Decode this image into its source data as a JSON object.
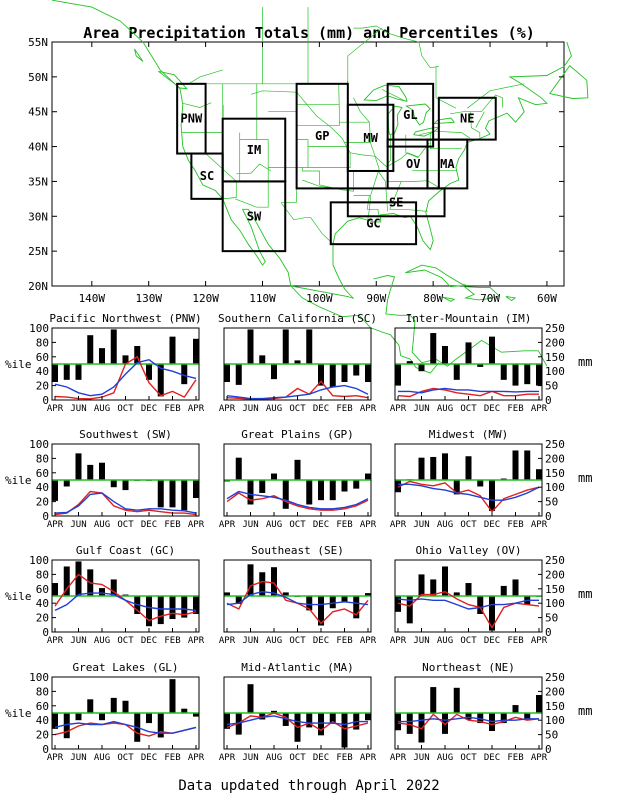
{
  "title": "Area Precipitation Totals (mm) and Percentiles (%)",
  "footer": "Data updated through April 2022",
  "map": {
    "lat_ticks": [
      "55N",
      "50N",
      "45N",
      "40N",
      "35N",
      "30N",
      "25N",
      "20N"
    ],
    "lon_ticks": [
      "140W",
      "130W",
      "120W",
      "110W",
      "100W",
      "90W",
      "80W",
      "70W",
      "60W"
    ],
    "land_color": "#22c222",
    "region_label_color": "#1f3fd6",
    "regions": [
      {
        "code": "PNW",
        "lon": [
          -125,
          -120
        ],
        "lat": [
          39,
          49
        ]
      },
      {
        "code": "SC",
        "lon": [
          -122.5,
          -117
        ],
        "lat": [
          32.5,
          39
        ]
      },
      {
        "code": "IM",
        "lon": [
          -117,
          -106
        ],
        "lat": [
          35,
          44
        ]
      },
      {
        "code": "SW",
        "lon": [
          -117,
          -106
        ],
        "lat": [
          25,
          35
        ]
      },
      {
        "code": "GP",
        "lon": [
          -104,
          -95
        ],
        "lat": [
          34,
          49
        ]
      },
      {
        "code": "MW",
        "lon": [
          -95,
          -87
        ],
        "lat": [
          36.5,
          46
        ]
      },
      {
        "code": "GL",
        "lon": [
          -88,
          -80
        ],
        "lat": [
          40,
          49
        ]
      },
      {
        "code": "NE",
        "lon": [
          -79,
          -69
        ],
        "lat": [
          41,
          47
        ]
      },
      {
        "code": "OV",
        "lon": [
          -88,
          -79
        ],
        "lat": [
          34,
          41
        ]
      },
      {
        "code": "MA",
        "lon": [
          -81,
          -74
        ],
        "lat": [
          34,
          41
        ]
      },
      {
        "code": "SE",
        "lon": [
          -95,
          -78
        ],
        "lat": [
          30,
          34
        ]
      },
      {
        "code": "GC",
        "lon": [
          -98,
          -83
        ],
        "lat": [
          26,
          32
        ]
      }
    ]
  },
  "chart_data": [
    {
      "type": "bar+line",
      "title": "Pacific Northwest (PNW)",
      "categories": [
        "APR",
        "MAY",
        "JUN",
        "JUL",
        "AUG",
        "SEP",
        "OCT",
        "NOV",
        "DEC",
        "JAN",
        "FEB",
        "MAR",
        "APR"
      ],
      "xticks": [
        "APR",
        "JUN",
        "AUG",
        "OCT",
        "DEC",
        "FEB",
        "APR"
      ],
      "ylabel_left": "%ile",
      "ylabel_right": "mm",
      "ylim_left": [
        0,
        100
      ],
      "ylim_right": [
        0,
        250
      ],
      "baseline": 50,
      "percentile": [
        25,
        28,
        28,
        90,
        72,
        98,
        62,
        75,
        28,
        5,
        88,
        22,
        85
      ],
      "series": [
        {
          "color": "#e02020",
          "values": [
            12,
            10,
            5,
            4,
            10,
            25,
            125,
            150,
            60,
            15,
            30,
            10,
            70
          ]
        },
        {
          "color": "#1f3fd6",
          "values": [
            55,
            45,
            25,
            15,
            20,
            45,
            90,
            130,
            140,
            110,
            100,
            85,
            75
          ]
        }
      ]
    },
    {
      "type": "bar+line",
      "title": "Southern California (SC)",
      "categories": [
        "APR",
        "MAY",
        "JUN",
        "JUL",
        "AUG",
        "SEP",
        "OCT",
        "NOV",
        "DEC",
        "JAN",
        "FEB",
        "MAR",
        "APR"
      ],
      "xticks": [
        "APR",
        "JUN",
        "AUG",
        "OCT",
        "DEC",
        "FEB",
        "APR"
      ],
      "ylabel_left": "%ile",
      "ylabel_right": "mm",
      "ylim_left": [
        0,
        100
      ],
      "ylim_right": [
        0,
        250
      ],
      "baseline": 50,
      "percentile": [
        25,
        21,
        98,
        62,
        29,
        98,
        55,
        98,
        20,
        18,
        25,
        34,
        25
      ],
      "series": [
        {
          "color": "#e02020",
          "values": [
            8,
            6,
            3,
            3,
            5,
            10,
            40,
            20,
            65,
            15,
            12,
            15,
            8
          ]
        },
        {
          "color": "#1f3fd6",
          "values": [
            15,
            10,
            5,
            5,
            8,
            10,
            15,
            20,
            35,
            45,
            50,
            40,
            20
          ]
        }
      ]
    },
    {
      "type": "bar+line",
      "title": "Inter-Mountain (IM)",
      "categories": [
        "APR",
        "MAY",
        "JUN",
        "JUL",
        "AUG",
        "SEP",
        "OCT",
        "NOV",
        "DEC",
        "JAN",
        "FEB",
        "MAR",
        "APR"
      ],
      "xticks": [
        "APR",
        "JUN",
        "AUG",
        "OCT",
        "DEC",
        "FEB",
        "APR"
      ],
      "ylabel_left": "%ile",
      "ylabel_right": "mm",
      "ylim_left": [
        0,
        100
      ],
      "ylim_right": [
        0,
        250
      ],
      "baseline": 50,
      "percentile": [
        20,
        54,
        40,
        93,
        75,
        28,
        80,
        46,
        88,
        28,
        20,
        22,
        20
      ],
      "series": [
        {
          "color": "#e02020",
          "values": [
            15,
            12,
            30,
            40,
            35,
            25,
            20,
            15,
            30,
            15,
            15,
            20,
            20
          ]
        },
        {
          "color": "#1f3fd6",
          "values": [
            30,
            30,
            25,
            35,
            40,
            35,
            35,
            30,
            30,
            30,
            28,
            30,
            30
          ]
        }
      ]
    },
    {
      "type": "bar+line",
      "title": "Southwest (SW)",
      "categories": [
        "APR",
        "MAY",
        "JUN",
        "JUL",
        "AUG",
        "SEP",
        "OCT",
        "NOV",
        "DEC",
        "JAN",
        "FEB",
        "MAR",
        "APR"
      ],
      "xticks": [
        "APR",
        "JUN",
        "AUG",
        "OCT",
        "DEC",
        "FEB",
        "APR"
      ],
      "ylabel_left": "%ile",
      "ylabel_right": "mm",
      "ylim_left": [
        0,
        100
      ],
      "ylim_right": [
        0,
        250
      ],
      "baseline": 50,
      "percentile": [
        21,
        41,
        87,
        71,
        74,
        40,
        36,
        50,
        50,
        12,
        12,
        8,
        25
      ],
      "series": [
        {
          "color": "#e02020",
          "values": [
            5,
            10,
            40,
            85,
            80,
            35,
            20,
            15,
            20,
            15,
            10,
            10,
            5
          ]
        },
        {
          "color": "#1f3fd6",
          "values": [
            10,
            12,
            35,
            75,
            80,
            50,
            25,
            20,
            25,
            25,
            20,
            18,
            10
          ]
        }
      ]
    },
    {
      "type": "bar+line",
      "title": "Great Plains (GP)",
      "categories": [
        "APR",
        "MAY",
        "JUN",
        "JUL",
        "AUG",
        "SEP",
        "OCT",
        "NOV",
        "DEC",
        "JAN",
        "FEB",
        "MAR",
        "APR"
      ],
      "xticks": [
        "APR",
        "JUN",
        "AUG",
        "OCT",
        "DEC",
        "FEB",
        "APR"
      ],
      "ylabel_left": "%ile",
      "ylabel_right": "mm",
      "ylim_left": [
        0,
        100
      ],
      "ylim_right": [
        0,
        250
      ],
      "baseline": 50,
      "percentile": [
        48,
        81,
        16,
        32,
        59,
        10,
        78,
        16,
        22,
        22,
        34,
        38,
        59
      ],
      "series": [
        {
          "color": "#e02020",
          "values": [
            50,
            80,
            55,
            60,
            70,
            50,
            35,
            25,
            20,
            20,
            25,
            35,
            55
          ]
        },
        {
          "color": "#1f3fd6",
          "values": [
            60,
            85,
            75,
            70,
            65,
            55,
            40,
            30,
            25,
            25,
            30,
            40,
            60
          ]
        }
      ]
    },
    {
      "type": "bar+line",
      "title": "Midwest (MW)",
      "categories": [
        "APR",
        "MAY",
        "JUN",
        "JUL",
        "AUG",
        "SEP",
        "OCT",
        "NOV",
        "DEC",
        "JAN",
        "FEB",
        "MAR",
        "APR"
      ],
      "xticks": [
        "APR",
        "JUN",
        "AUG",
        "OCT",
        "DEC",
        "FEB",
        "APR"
      ],
      "ylabel_left": "%ile",
      "ylabel_right": "mm",
      "ylim_left": [
        0,
        100
      ],
      "ylim_right": [
        0,
        250
      ],
      "baseline": 50,
      "percentile": [
        33,
        51,
        81,
        82,
        87,
        30,
        83,
        41,
        7,
        52,
        91,
        91,
        65
      ],
      "series": [
        {
          "color": "#e02020",
          "values": [
            100,
            120,
            110,
            105,
            115,
            80,
            90,
            70,
            15,
            60,
            75,
            90,
            100
          ]
        },
        {
          "color": "#1f3fd6",
          "values": [
            110,
            110,
            105,
            95,
            90,
            80,
            75,
            65,
            55,
            55,
            65,
            80,
            100
          ]
        }
      ]
    },
    {
      "type": "bar+line",
      "title": "Gulf Coast (GC)",
      "categories": [
        "APR",
        "MAY",
        "JUN",
        "JUL",
        "AUG",
        "SEP",
        "OCT",
        "NOV",
        "DEC",
        "JAN",
        "FEB",
        "MAR",
        "APR"
      ],
      "xticks": [
        "APR",
        "JUN",
        "AUG",
        "OCT",
        "DEC",
        "FEB",
        "APR"
      ],
      "ylabel_left": "%ile",
      "ylabel_right": "mm",
      "ylim_left": [
        0,
        100
      ],
      "ylim_right": [
        0,
        250
      ],
      "baseline": 50,
      "percentile": [
        68,
        91,
        98,
        87,
        61,
        73,
        52,
        25,
        8,
        11,
        18,
        20,
        25
      ],
      "series": [
        {
          "color": "#e02020",
          "values": [
            90,
            150,
            200,
            170,
            165,
            140,
            110,
            75,
            40,
            55,
            65,
            60,
            70
          ]
        },
        {
          "color": "#1f3fd6",
          "values": [
            75,
            95,
            130,
            135,
            135,
            130,
            110,
            95,
            85,
            80,
            80,
            80,
            75
          ]
        }
      ]
    },
    {
      "type": "bar+line",
      "title": "Southeast (SE)",
      "categories": [
        "APR",
        "MAY",
        "JUN",
        "JUL",
        "AUG",
        "SEP",
        "OCT",
        "NOV",
        "DEC",
        "JAN",
        "FEB",
        "MAR",
        "APR"
      ],
      "xticks": [
        "APR",
        "JUN",
        "AUG",
        "OCT",
        "DEC",
        "FEB",
        "APR"
      ],
      "ylabel_left": "%ile",
      "ylabel_right": "mm",
      "ylim_left": [
        0,
        100
      ],
      "ylim_right": [
        0,
        250
      ],
      "baseline": 50,
      "percentile": [
        55,
        39,
        94,
        83,
        90,
        55,
        50,
        30,
        9,
        33,
        41,
        19,
        54
      ],
      "series": [
        {
          "color": "#e02020",
          "values": [
            100,
            80,
            160,
            175,
            170,
            110,
            100,
            80,
            30,
            70,
            80,
            60,
            110
          ]
        },
        {
          "color": "#1f3fd6",
          "values": [
            95,
            100,
            130,
            140,
            135,
            120,
            100,
            95,
            95,
            100,
            105,
            100,
            95
          ]
        }
      ]
    },
    {
      "type": "bar+line",
      "title": "Ohio Valley (OV)",
      "categories": [
        "APR",
        "MAY",
        "JUN",
        "JUL",
        "AUG",
        "SEP",
        "OCT",
        "NOV",
        "DEC",
        "JAN",
        "FEB",
        "MAR",
        "APR"
      ],
      "xticks": [
        "APR",
        "JUN",
        "AUG",
        "OCT",
        "DEC",
        "FEB",
        "APR"
      ],
      "ylabel_left": "%ile",
      "ylabel_right": "mm",
      "ylim_left": [
        0,
        100
      ],
      "ylim_right": [
        0,
        250
      ],
      "baseline": 50,
      "percentile": [
        28,
        12,
        80,
        73,
        91,
        55,
        68,
        25,
        2,
        64,
        73,
        38,
        50
      ],
      "series": [
        {
          "color": "#e02020",
          "values": [
            100,
            90,
            130,
            130,
            140,
            115,
            95,
            85,
            15,
            85,
            100,
            95,
            90
          ]
        },
        {
          "color": "#1f3fd6",
          "values": [
            115,
            110,
            115,
            110,
            110,
            95,
            80,
            85,
            95,
            95,
            100,
            110,
            110
          ]
        }
      ]
    },
    {
      "type": "bar+line",
      "title": "Great Lakes (GL)",
      "categories": [
        "APR",
        "MAY",
        "JUN",
        "JUL",
        "AUG",
        "SEP",
        "OCT",
        "NOV",
        "DEC",
        "JAN",
        "FEB",
        "MAR",
        "APR"
      ],
      "xticks": [
        "APR",
        "JUN",
        "AUG",
        "OCT",
        "DEC",
        "FEB",
        "APR"
      ],
      "ylabel_left": "%ile",
      "ylabel_right": "mm",
      "ylim_left": [
        0,
        100
      ],
      "ylim_right": [
        0,
        250
      ],
      "baseline": 50,
      "percentile": [
        28,
        15,
        40,
        69,
        40,
        71,
        67,
        10,
        36,
        16,
        97,
        56,
        45
      ],
      "series": [
        {
          "color": "#e02020",
          "values": [
            50,
            60,
            80,
            90,
            85,
            90,
            85,
            55,
            45,
            60,
            55,
            65,
            75
          ]
        },
        {
          "color": "#1f3fd6",
          "values": [
            75,
            85,
            90,
            85,
            85,
            95,
            85,
            75,
            60,
            55,
            55,
            65,
            75
          ]
        }
      ]
    },
    {
      "type": "bar+line",
      "title": "Mid-Atlantic (MA)",
      "categories": [
        "APR",
        "MAY",
        "JUN",
        "JUL",
        "AUG",
        "SEP",
        "OCT",
        "NOV",
        "DEC",
        "JAN",
        "FEB",
        "MAR",
        "APR"
      ],
      "xticks": [
        "APR",
        "JUN",
        "AUG",
        "OCT",
        "DEC",
        "FEB",
        "APR"
      ],
      "ylabel_left": "%ile",
      "ylabel_right": "mm",
      "ylim_left": [
        0,
        100
      ],
      "ylim_right": [
        0,
        250
      ],
      "baseline": 50,
      "percentile": [
        28,
        20,
        90,
        41,
        53,
        32,
        10,
        30,
        19,
        35,
        2,
        27,
        40
      ],
      "series": [
        {
          "color": "#e02020",
          "values": [
            75,
            90,
            115,
            110,
            125,
            110,
            75,
            90,
            65,
            95,
            70,
            80,
            90
          ]
        },
        {
          "color": "#1f3fd6",
          "values": [
            85,
            90,
            100,
            110,
            115,
            105,
            95,
            90,
            90,
            90,
            85,
            95,
            95
          ]
        }
      ]
    },
    {
      "type": "bar+line",
      "title": "Northeast (NE)",
      "categories": [
        "APR",
        "MAY",
        "JUN",
        "JUL",
        "AUG",
        "SEP",
        "OCT",
        "NOV",
        "DEC",
        "JAN",
        "FEB",
        "MAR",
        "APR"
      ],
      "xticks": [
        "APR",
        "JUN",
        "AUG",
        "OCT",
        "DEC",
        "FEB",
        "APR"
      ],
      "ylabel_left": "%ile",
      "ylabel_right": "mm",
      "ylim_left": [
        0,
        100
      ],
      "ylim_right": [
        0,
        250
      ],
      "baseline": 50,
      "percentile": [
        26,
        21,
        9,
        86,
        21,
        85,
        41,
        36,
        25,
        36,
        61,
        40,
        75
      ],
      "series": [
        {
          "color": "#e02020",
          "values": [
            90,
            85,
            70,
            120,
            85,
            120,
            100,
            95,
            85,
            95,
            110,
            100,
            105
          ]
        },
        {
          "color": "#1f3fd6",
          "values": [
            95,
            95,
            100,
            105,
            100,
            105,
            110,
            105,
            95,
            100,
            100,
            105,
            105
          ]
        }
      ]
    }
  ]
}
